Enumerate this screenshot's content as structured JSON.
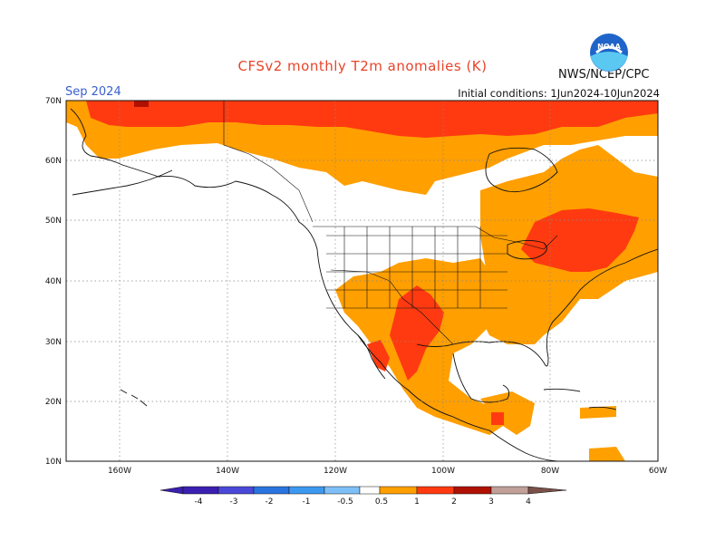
{
  "header": {
    "title": "CFSv2 monthly T2m anomalies (K)",
    "month": "Sep 2024",
    "initial_conditions": "Initial conditions: 1Jun2024-10Jun2024",
    "agency": "NWS/NCEP/CPC",
    "logo_text": "NOAA"
  },
  "axes": {
    "lat_labels": [
      "70N",
      "60N",
      "50N",
      "40N",
      "30N",
      "20N",
      "10N"
    ],
    "lon_labels": [
      "160W",
      "140W",
      "120W",
      "100W",
      "80W",
      "60W"
    ]
  },
  "colorbar": {
    "labels": [
      "-4",
      "-3",
      "-2",
      "-1",
      "-0.5",
      "0.5",
      "1",
      "2",
      "3",
      "4"
    ],
    "colors": [
      "#3a1fb0",
      "#4a48d8",
      "#2a74e0",
      "#3d99f0",
      "#7fbff8",
      "#ffffff",
      "#ff9f00",
      "#ff3a10",
      "#b01000",
      "#c0a098",
      "#7a5048"
    ]
  },
  "legend_colors": {
    "warm1": "#ff9f00",
    "warm2": "#ff3a10",
    "warm3": "#b01000"
  }
}
